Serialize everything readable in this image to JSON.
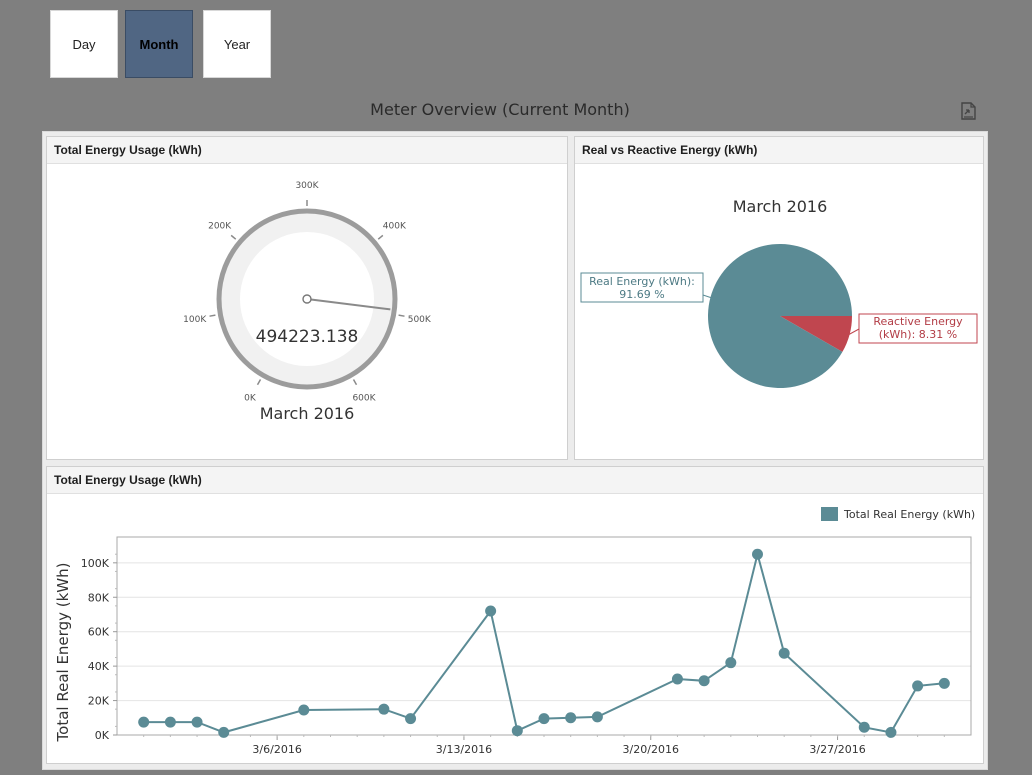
{
  "period_buttons": [
    {
      "label": "Day",
      "active": false
    },
    {
      "label": "Month",
      "active": true
    },
    {
      "label": "Year",
      "active": false
    }
  ],
  "title": "Meter Overview (Current Month)",
  "export_icon": "export-document-icon",
  "colors": {
    "series": "#5b8b95",
    "reactive": "#c0464f",
    "active_button": "#506683"
  },
  "gauge_panel": {
    "header": "Total Energy Usage (kWh)",
    "value_text": "494223.138",
    "value": 494223.138,
    "caption": "March 2016",
    "scale_min": 0,
    "scale_max": 600000,
    "tick_labels": [
      "0K",
      "100K",
      "200K",
      "300K",
      "400K",
      "500K",
      "600K"
    ]
  },
  "pie_panel": {
    "header": "Real vs Reactive Energy (kWh)",
    "chart_title": "March 2016",
    "slices": [
      {
        "label_line1": "Real Energy (kWh):",
        "label_line2": "91.69 %",
        "value": 91.69
      },
      {
        "label_line1": "Reactive Energy",
        "label_line2": "(kWh): 8.31 %",
        "value": 8.31
      }
    ]
  },
  "line_panel": {
    "header": "Total Energy Usage (kWh)",
    "legend_label": "Total Real Energy (kWh)",
    "ylabel": "Total Real Energy (kWh)",
    "y_tick_labels": [
      "0K",
      "20K",
      "40K",
      "60K",
      "80K",
      "100K"
    ],
    "x_tick_labels": [
      "3/6/2016",
      "3/13/2016",
      "3/20/2016",
      "3/27/2016"
    ]
  },
  "chart_data": [
    {
      "type": "gauge",
      "title": "March 2016",
      "value": 494223.138,
      "range": [
        0,
        600000
      ],
      "ticks": [
        "0K",
        "100K",
        "200K",
        "300K",
        "400K",
        "500K",
        "600K"
      ]
    },
    {
      "type": "pie",
      "title": "March 2016",
      "categories": [
        "Real Energy (kWh)",
        "Reactive Energy (kWh)"
      ],
      "values": [
        91.69,
        8.31
      ]
    },
    {
      "type": "line",
      "title": "",
      "xlabel": "",
      "ylabel": "Total Real Energy (kWh)",
      "ylim": [
        0,
        115000
      ],
      "grid": true,
      "legend": "top-right",
      "x_ticks": [
        "3/6/2016",
        "3/13/2016",
        "3/20/2016",
        "3/27/2016"
      ],
      "series": [
        {
          "name": "Total Real Energy (kWh)",
          "x": [
            "2016-03-01",
            "2016-03-02",
            "2016-03-03",
            "2016-03-04",
            "2016-03-07",
            "2016-03-10",
            "2016-03-11",
            "2016-03-14",
            "2016-03-15",
            "2016-03-16",
            "2016-03-17",
            "2016-03-18",
            "2016-03-21",
            "2016-03-22",
            "2016-03-23",
            "2016-03-24",
            "2016-03-25",
            "2016-03-28",
            "2016-03-29",
            "2016-03-30",
            "2016-03-31"
          ],
          "values": [
            7500,
            7500,
            7500,
            1500,
            14500,
            15000,
            9500,
            72000,
            2500,
            9500,
            10000,
            10500,
            32500,
            31500,
            42000,
            105000,
            47500,
            4500,
            1500,
            28500,
            30000
          ]
        }
      ]
    }
  ]
}
